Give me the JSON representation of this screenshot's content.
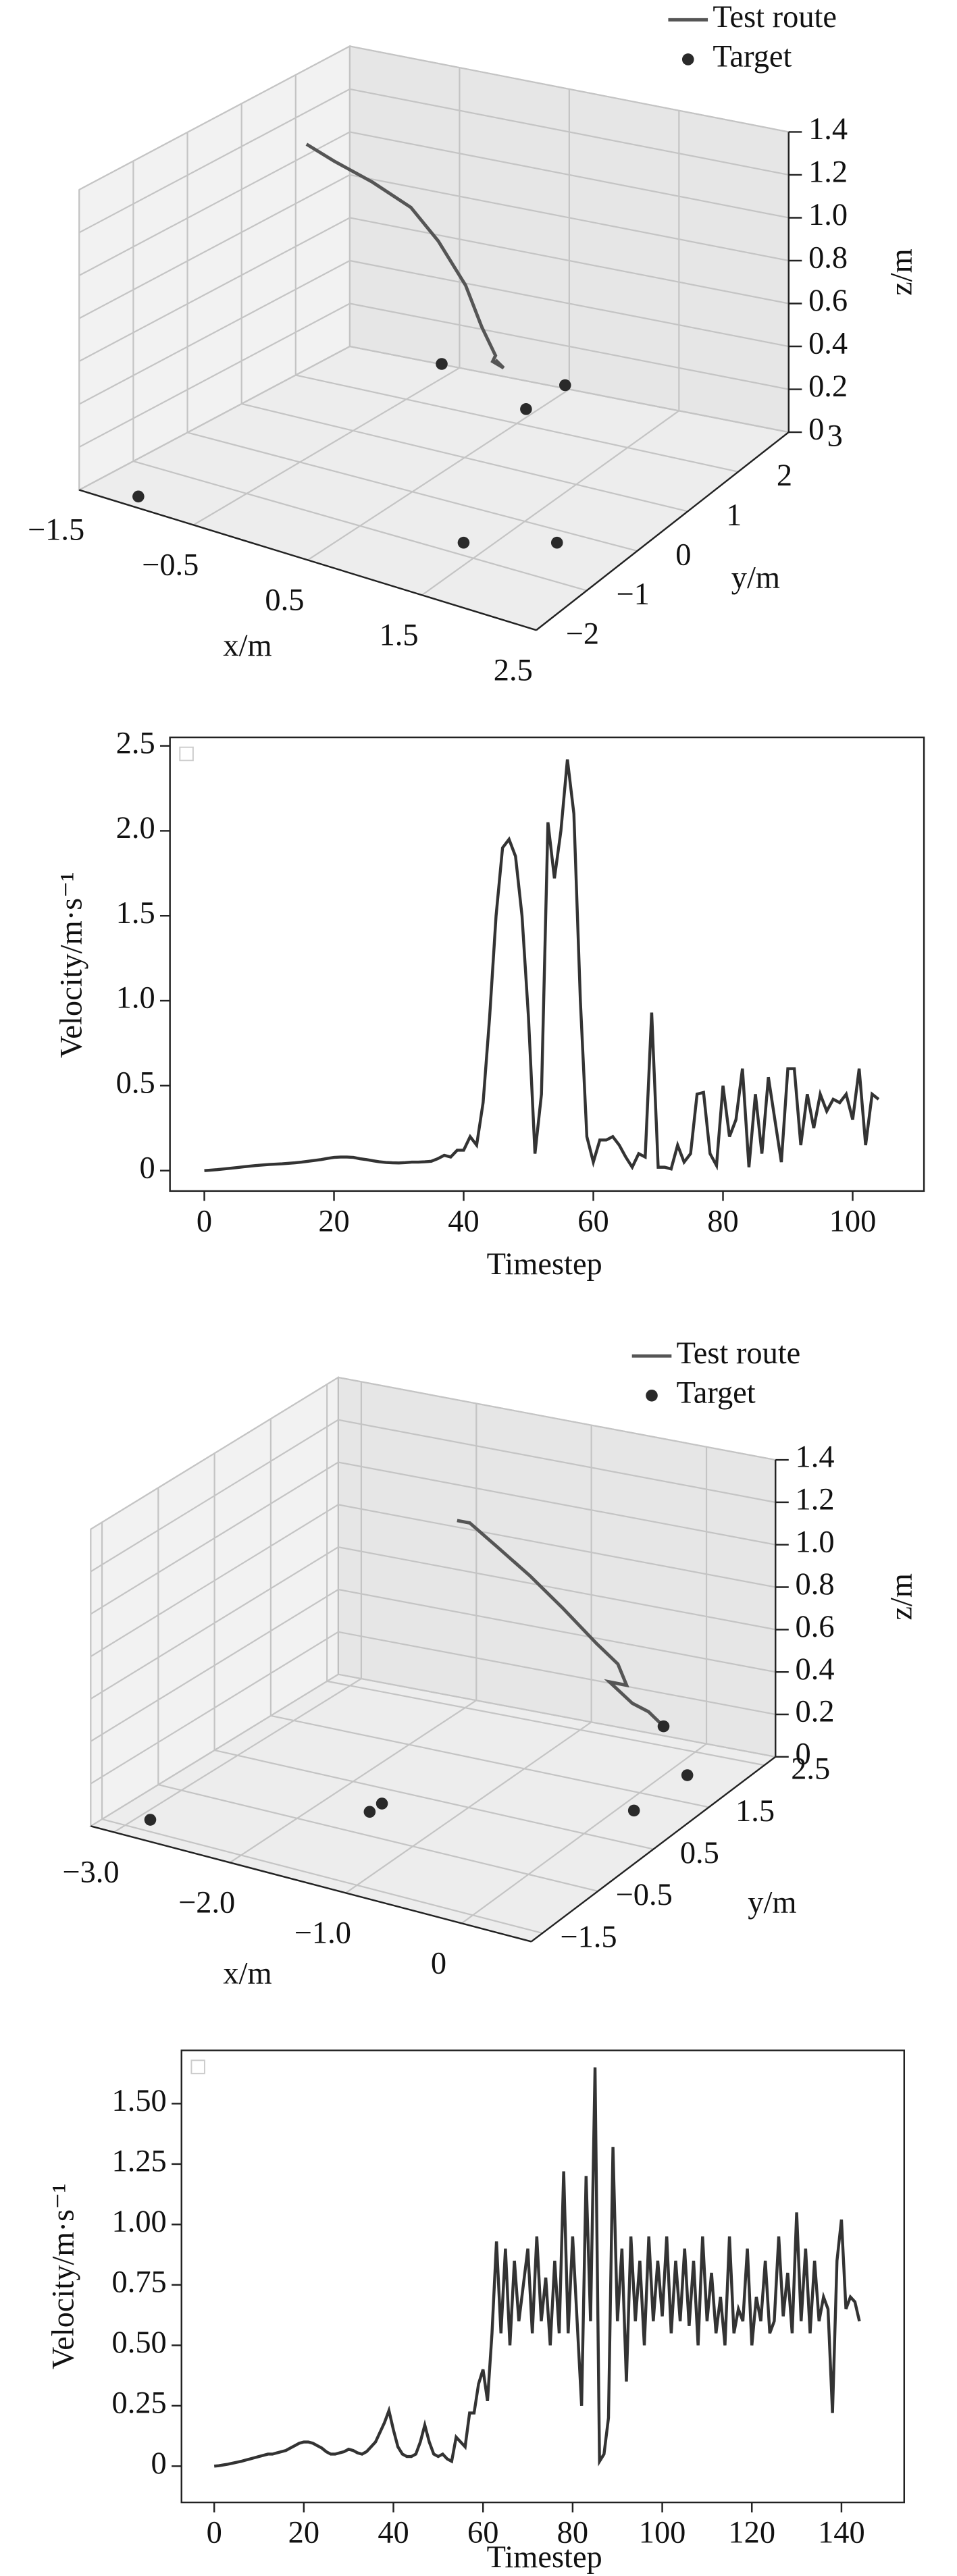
{
  "chart_data": [
    {
      "type": "3d",
      "xlabel": "x/m",
      "ylabel": "y/m",
      "zlabel": "z/m",
      "xlim": [
        -1.5,
        2.5
      ],
      "ylim": [
        -2,
        3
      ],
      "zlim": [
        0,
        1.4
      ],
      "xticks": [
        {
          "value": -1.5,
          "label": "−1.5"
        },
        {
          "value": -0.5,
          "label": "−0.5"
        },
        0.5,
        1.5,
        2.5
      ],
      "yticks": [
        {
          "value": -2,
          "label": "−2"
        },
        {
          "value": -1,
          "label": "−1"
        },
        0,
        1,
        2,
        3
      ],
      "zticks": [
        0,
        0.2,
        0.4,
        0.6,
        0.8,
        {
          "value": 1.0,
          "label": "1.0"
        },
        1.2,
        1.4
      ],
      "series": [
        {
          "name": "Test route",
          "style": "line",
          "color": "#555555",
          "x": [
            -1.5,
            -1.3,
            -1.0,
            -0.7,
            -0.5,
            -0.3,
            -0.2,
            -0.1,
            -0.15,
            -0.05,
            -0.1
          ],
          "y": [
            2.2,
            2.3,
            2.4,
            2.5,
            2.6,
            2.7,
            2.8,
            2.85,
            2.9,
            2.9,
            2.85
          ],
          "z": [
            1.05,
            0.98,
            0.9,
            0.8,
            0.65,
            0.45,
            0.25,
            0.12,
            0.08,
            0.06,
            0.1
          ]
        },
        {
          "name": "Target",
          "style": "dot",
          "color": "#2a2a2a",
          "x": [
            -1.1,
            1.3,
            1.9,
            -0.3,
            0.7,
            0.7
          ],
          "y": [
            -1.75,
            -0.75,
            -0.25,
            2.25,
            1.75,
            2.5
          ],
          "z": [
            0,
            0,
            0,
            0.15,
            0.13,
            0.12
          ]
        }
      ]
    },
    {
      "type": "line",
      "xlabel": "Timestep",
      "ylabel": "Velocity/m·s⁻¹",
      "color": "#333333",
      "xlim": [
        -5.3,
        111
      ],
      "ylim": [
        -0.12,
        2.55
      ],
      "xticks": [
        0,
        20,
        40,
        60,
        80,
        100
      ],
      "yticks": [
        0,
        0.5,
        {
          "value": 1.0,
          "label": "1.0"
        },
        1.5,
        {
          "value": 2.0,
          "label": "2.0"
        },
        2.5
      ],
      "x": [
        0,
        1,
        2,
        3,
        4,
        5,
        6,
        7,
        8,
        9,
        10,
        11,
        12,
        13,
        14,
        15,
        16,
        17,
        18,
        19,
        20,
        21,
        22,
        23,
        24,
        25,
        26,
        27,
        28,
        29,
        30,
        31,
        32,
        33,
        34,
        35,
        36,
        37,
        38,
        39,
        40,
        41,
        42,
        43,
        44,
        45,
        46,
        47,
        48,
        49,
        50,
        51,
        52,
        53,
        54,
        55,
        56,
        57,
        58,
        59,
        60,
        61,
        62,
        63,
        64,
        65,
        66,
        67,
        68,
        69,
        70,
        71,
        72,
        73,
        74,
        75,
        76,
        77,
        78,
        79,
        80,
        81,
        82,
        83,
        84,
        85,
        86,
        87,
        88,
        89,
        90,
        91,
        92,
        93,
        94,
        95,
        96,
        97,
        98,
        99,
        100,
        101,
        102,
        103,
        104
      ],
      "values": [
        0,
        0.003,
        0.006,
        0.01,
        0.014,
        0.018,
        0.022,
        0.026,
        0.03,
        0.033,
        0.036,
        0.038,
        0.04,
        0.043,
        0.046,
        0.05,
        0.055,
        0.06,
        0.065,
        0.072,
        0.078,
        0.08,
        0.08,
        0.078,
        0.07,
        0.065,
        0.058,
        0.052,
        0.048,
        0.046,
        0.045,
        0.047,
        0.05,
        0.05,
        0.052,
        0.055,
        0.07,
        0.09,
        0.08,
        0.12,
        0.12,
        0.2,
        0.15,
        0.4,
        0.9,
        1.5,
        1.9,
        1.95,
        1.85,
        1.5,
        0.9,
        0.1,
        0.45,
        2.05,
        1.72,
        2.0,
        2.42,
        2.1,
        1.0,
        0.2,
        0.05,
        0.18,
        0.18,
        0.2,
        0.15,
        0.08,
        0.02,
        0.1,
        0.08,
        0.93,
        0.02,
        0.02,
        0.01,
        0.15,
        0.05,
        0.1,
        0.45,
        0.46,
        0.1,
        0.03,
        0.5,
        0.2,
        0.3,
        0.6,
        0.02,
        0.45,
        0.1,
        0.55,
        0.3,
        0.05,
        0.6,
        0.6,
        0.15,
        0.45,
        0.25,
        0.45,
        0.35,
        0.42,
        0.4,
        0.45,
        0.3,
        0.6,
        0.15,
        0.45,
        0.42
      ]
    },
    {
      "type": "3d",
      "xlabel": "x/m",
      "ylabel": "y/m",
      "zlabel": "z/m",
      "xlim": [
        -3.2,
        0.6
      ],
      "ylim": [
        -1.7,
        2.7
      ],
      "zlim": [
        0,
        1.4
      ],
      "xticks": [
        {
          "value": -3.0,
          "label": "−3.0"
        },
        {
          "value": -2.0,
          "label": "−2.0"
        },
        {
          "value": -1.0,
          "label": "−1.0"
        },
        0
      ],
      "yticks": [
        {
          "value": -1.5,
          "label": "−1.5"
        },
        {
          "value": -0.5,
          "label": "−0.5"
        },
        0.5,
        1.5,
        2.5
      ],
      "zticks": [
        0,
        0.2,
        0.4,
        0.6,
        0.8,
        {
          "value": 1.0,
          "label": "1.0"
        },
        1.2,
        1.4
      ],
      "series": [
        {
          "name": "Test route",
          "style": "line",
          "color": "#555555",
          "x": [
            -2.06,
            -1.95,
            -1.7,
            -1.4,
            -1.1,
            -0.8,
            -0.6,
            -0.5,
            -0.65,
            -0.45,
            -0.3,
            -0.16
          ],
          "y": [
            2.48,
            2.48,
            2.45,
            2.42,
            2.4,
            2.38,
            2.35,
            2.3,
            2.3,
            2.3,
            2.28,
            2.26
          ],
          "z": [
            0.88,
            0.88,
            0.8,
            0.7,
            0.58,
            0.45,
            0.38,
            0.3,
            0.3,
            0.22,
            0.2,
            0.15
          ]
        },
        {
          "name": "Target",
          "style": "dot",
          "color": "#2a2a2a",
          "x": [
            -2.9,
            -1.6,
            -1.6,
            0.22,
            0.22,
            -0.16
          ],
          "y": [
            -1.26,
            -0.03,
            0.19,
            0.94,
            1.9,
            2.26
          ],
          "z": [
            0,
            0,
            0,
            0.05,
            0.03,
            0.15
          ]
        }
      ]
    },
    {
      "type": "line",
      "xlabel": "Timestep",
      "ylabel": "Velocity/m·s⁻¹",
      "color": "#333333",
      "xlim": [
        -7.3,
        154
      ],
      "ylim": [
        -0.15,
        1.72
      ],
      "xticks": [
        0,
        20,
        40,
        60,
        80,
        100,
        120,
        140
      ],
      "yticks": [
        0,
        0.25,
        {
          "value": 0.5,
          "label": "0.50"
        },
        0.75,
        {
          "value": 1.0,
          "label": "1.00"
        },
        1.25,
        {
          "value": 1.5,
          "label": "1.50"
        }
      ],
      "x": [
        0,
        1,
        2,
        3,
        4,
        5,
        6,
        7,
        8,
        9,
        10,
        11,
        12,
        13,
        14,
        15,
        16,
        17,
        18,
        19,
        20,
        21,
        22,
        23,
        24,
        25,
        26,
        27,
        28,
        29,
        30,
        31,
        32,
        33,
        34,
        35,
        36,
        37,
        38,
        39,
        40,
        41,
        42,
        43,
        44,
        45,
        46,
        47,
        48,
        49,
        50,
        51,
        52,
        53,
        54,
        55,
        56,
        57,
        58,
        59,
        60,
        61,
        62,
        63,
        64,
        65,
        66,
        67,
        68,
        69,
        70,
        71,
        72,
        73,
        74,
        75,
        76,
        77,
        78,
        79,
        80,
        81,
        82,
        83,
        84,
        85,
        86,
        87,
        88,
        89,
        90,
        91,
        92,
        93,
        94,
        95,
        96,
        97,
        98,
        99,
        100,
        101,
        102,
        103,
        104,
        105,
        106,
        107,
        108,
        109,
        110,
        111,
        112,
        113,
        114,
        115,
        116,
        117,
        118,
        119,
        120,
        121,
        122,
        123,
        124,
        125,
        126,
        127,
        128,
        129,
        130,
        131,
        132,
        133,
        134,
        135,
        136,
        137,
        138,
        139,
        140,
        141,
        142,
        143,
        144
      ],
      "values": [
        0,
        0.002,
        0.005,
        0.008,
        0.012,
        0.016,
        0.02,
        0.025,
        0.03,
        0.035,
        0.04,
        0.045,
        0.05,
        0.05,
        0.055,
        0.06,
        0.065,
        0.075,
        0.085,
        0.095,
        0.1,
        0.1,
        0.095,
        0.085,
        0.075,
        0.06,
        0.05,
        0.05,
        0.055,
        0.06,
        0.07,
        0.065,
        0.055,
        0.05,
        0.06,
        0.08,
        0.1,
        0.14,
        0.18,
        0.23,
        0.15,
        0.08,
        0.05,
        0.04,
        0.04,
        0.05,
        0.1,
        0.17,
        0.1,
        0.05,
        0.04,
        0.05,
        0.03,
        0.02,
        0.12,
        0.1,
        0.08,
        0.22,
        0.22,
        0.34,
        0.4,
        0.27,
        0.55,
        0.93,
        0.55,
        0.9,
        0.5,
        0.85,
        0.6,
        0.75,
        0.9,
        0.55,
        0.95,
        0.6,
        0.78,
        0.5,
        0.85,
        0.55,
        1.22,
        0.55,
        0.95,
        0.6,
        0.25,
        1.2,
        0.6,
        1.65,
        0.02,
        0.05,
        0.2,
        1.32,
        0.6,
        0.9,
        0.35,
        0.95,
        0.6,
        0.85,
        0.5,
        0.95,
        0.6,
        0.85,
        0.62,
        0.95,
        0.55,
        0.85,
        0.6,
        0.9,
        0.58,
        0.85,
        0.5,
        0.95,
        0.6,
        0.8,
        0.55,
        0.7,
        0.5,
        0.95,
        0.55,
        0.65,
        0.6,
        0.9,
        0.5,
        0.7,
        0.6,
        0.85,
        0.55,
        0.6,
        0.95,
        0.62,
        0.8,
        0.55,
        1.05,
        0.6,
        0.9,
        0.55,
        0.85,
        0.6,
        0.7,
        0.65,
        0.22,
        0.85,
        1.02,
        0.65,
        0.7,
        0.68,
        0.6
      ]
    }
  ]
}
